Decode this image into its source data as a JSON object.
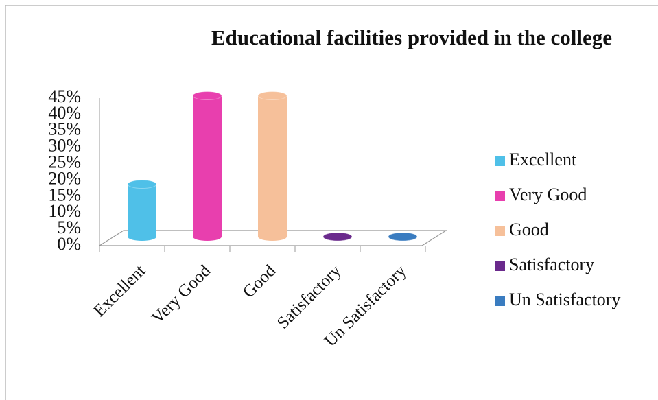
{
  "chart_data": {
    "type": "bar3d",
    "title": "Educational facilities provided in the college",
    "categories": [
      "Excellent",
      "Very Good",
      "Good",
      "Satisfactory",
      "Un Satisfactory"
    ],
    "values": [
      16,
      43,
      43,
      0,
      0
    ],
    "colors": [
      "#4fc0e8",
      "#e83fae",
      "#f6c09a",
      "#6a2a8c",
      "#3a7cc0"
    ],
    "ylim": [
      0,
      45
    ],
    "yticks": [
      {
        "value": 0,
        "label": "0%"
      },
      {
        "value": 5,
        "label": "5%"
      },
      {
        "value": 10,
        "label": "10%"
      },
      {
        "value": 15,
        "label": "15%"
      },
      {
        "value": 20,
        "label": "20%"
      },
      {
        "value": 25,
        "label": "25%"
      },
      {
        "value": 30,
        "label": "30%"
      },
      {
        "value": 35,
        "label": "35%"
      },
      {
        "value": 40,
        "label": "40%"
      },
      {
        "value": 45,
        "label": "45%"
      }
    ],
    "grid": false,
    "legend": "right"
  }
}
